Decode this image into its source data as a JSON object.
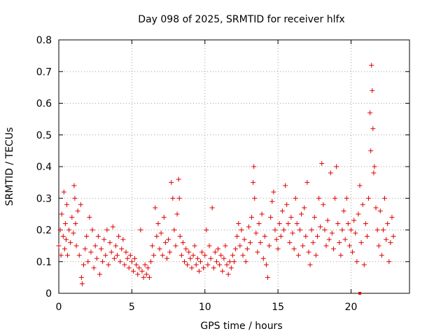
{
  "chart_data": {
    "type": "scatter",
    "title": "Day 098 of 2025, SRMTID for receiver hlfx",
    "xlabel": "GPS time / hours",
    "ylabel": "SRMTID / TECUs",
    "xlim": [
      0,
      24
    ],
    "ylim": [
      0,
      0.8
    ],
    "xticks": [
      0,
      5,
      10,
      15,
      20
    ],
    "xtick_labels": [
      "0",
      "5",
      "10",
      "15",
      "20"
    ],
    "yticks": [
      0,
      0.1,
      0.2,
      0.3,
      0.4,
      0.5,
      0.6,
      0.7,
      0.8
    ],
    "ytick_labels": [
      "0",
      "0.1",
      "0.2",
      "0.3",
      "0.4",
      "0.5",
      "0.6",
      "0.7",
      "0.8"
    ],
    "grid": true,
    "marker": "+",
    "marker_color": "#e00000",
    "series": [
      {
        "name": "SRMTID",
        "points": [
          [
            0.0,
            0.15
          ],
          [
            0.1,
            0.2
          ],
          [
            0.15,
            0.12
          ],
          [
            0.2,
            0.25
          ],
          [
            0.3,
            0.18
          ],
          [
            0.35,
            0.32
          ],
          [
            0.4,
            0.14
          ],
          [
            0.45,
            0.22
          ],
          [
            0.5,
            0.17
          ],
          [
            0.55,
            0.28
          ],
          [
            0.6,
            0.12
          ],
          [
            0.7,
            0.2
          ],
          [
            0.8,
            0.16
          ],
          [
            0.9,
            0.24
          ],
          [
            1.0,
            0.19
          ],
          [
            1.05,
            0.34
          ],
          [
            1.1,
            0.3
          ],
          [
            1.15,
            0.22
          ],
          [
            1.2,
            0.15
          ],
          [
            1.3,
            0.26
          ],
          [
            1.4,
            0.12
          ],
          [
            1.5,
            0.28
          ],
          [
            1.55,
            0.05
          ],
          [
            1.6,
            0.03
          ],
          [
            1.7,
            0.09
          ],
          [
            1.8,
            0.14
          ],
          [
            1.9,
            0.18
          ],
          [
            2.0,
            0.1
          ],
          [
            2.1,
            0.24
          ],
          [
            2.2,
            0.13
          ],
          [
            2.3,
            0.2
          ],
          [
            2.4,
            0.08
          ],
          [
            2.5,
            0.15
          ],
          [
            2.6,
            0.11
          ],
          [
            2.7,
            0.18
          ],
          [
            2.8,
            0.06
          ],
          [
            2.9,
            0.14
          ],
          [
            3.0,
            0.1
          ],
          [
            3.1,
            0.17
          ],
          [
            3.2,
            0.12
          ],
          [
            3.3,
            0.2
          ],
          [
            3.4,
            0.09
          ],
          [
            3.5,
            0.16
          ],
          [
            3.6,
            0.13
          ],
          [
            3.7,
            0.21
          ],
          [
            3.8,
            0.11
          ],
          [
            3.9,
            0.15
          ],
          [
            4.0,
            0.12
          ],
          [
            4.1,
            0.18
          ],
          [
            4.2,
            0.1
          ],
          [
            4.3,
            0.14
          ],
          [
            4.4,
            0.17
          ],
          [
            4.5,
            0.09
          ],
          [
            4.6,
            0.13
          ],
          [
            4.7,
            0.11
          ],
          [
            4.8,
            0.08
          ],
          [
            4.9,
            0.12
          ],
          [
            5.0,
            0.1
          ],
          [
            5.1,
            0.07
          ],
          [
            5.2,
            0.11
          ],
          [
            5.3,
            0.09
          ],
          [
            5.4,
            0.06
          ],
          [
            5.5,
            0.08
          ],
          [
            5.6,
            0.2
          ],
          [
            5.7,
            0.07
          ],
          [
            5.8,
            0.05
          ],
          [
            5.9,
            0.09
          ],
          [
            6.0,
            0.06
          ],
          [
            6.1,
            0.08
          ],
          [
            6.2,
            0.05
          ],
          [
            6.3,
            0.1
          ],
          [
            6.4,
            0.15
          ],
          [
            6.5,
            0.12
          ],
          [
            6.6,
            0.27
          ],
          [
            6.7,
            0.18
          ],
          [
            6.8,
            0.22
          ],
          [
            6.9,
            0.14
          ],
          [
            7.0,
            0.19
          ],
          [
            7.1,
            0.12
          ],
          [
            7.2,
            0.24
          ],
          [
            7.3,
            0.16
          ],
          [
            7.4,
            0.11
          ],
          [
            7.5,
            0.17
          ],
          [
            7.6,
            0.13
          ],
          [
            7.7,
            0.35
          ],
          [
            7.8,
            0.3
          ],
          [
            7.9,
            0.2
          ],
          [
            8.0,
            0.15
          ],
          [
            8.1,
            0.25
          ],
          [
            8.2,
            0.36
          ],
          [
            8.25,
            0.3
          ],
          [
            8.3,
            0.18
          ],
          [
            8.4,
            0.12
          ],
          [
            8.5,
            0.16
          ],
          [
            8.6,
            0.1
          ],
          [
            8.7,
            0.14
          ],
          [
            8.8,
            0.09
          ],
          [
            8.9,
            0.13
          ],
          [
            9.0,
            0.11
          ],
          [
            9.1,
            0.08
          ],
          [
            9.2,
            0.12
          ],
          [
            9.3,
            0.15
          ],
          [
            9.4,
            0.09
          ],
          [
            9.5,
            0.11
          ],
          [
            9.6,
            0.07
          ],
          [
            9.7,
            0.1
          ],
          [
            9.8,
            0.13
          ],
          [
            9.9,
            0.08
          ],
          [
            10.0,
            0.12
          ],
          [
            10.1,
            0.2
          ],
          [
            10.2,
            0.09
          ],
          [
            10.3,
            0.15
          ],
          [
            10.4,
            0.11
          ],
          [
            10.5,
            0.27
          ],
          [
            10.6,
            0.08
          ],
          [
            10.7,
            0.13
          ],
          [
            10.8,
            0.1
          ],
          [
            10.9,
            0.14
          ],
          [
            11.0,
            0.09
          ],
          [
            11.1,
            0.12
          ],
          [
            11.2,
            0.07
          ],
          [
            11.3,
            0.11
          ],
          [
            11.4,
            0.15
          ],
          [
            11.5,
            0.09
          ],
          [
            11.6,
            0.06
          ],
          [
            11.7,
            0.1
          ],
          [
            11.8,
            0.08
          ],
          [
            11.9,
            0.12
          ],
          [
            12.0,
            0.1
          ],
          [
            12.1,
            0.14
          ],
          [
            12.2,
            0.18
          ],
          [
            12.3,
            0.22
          ],
          [
            12.4,
            0.15
          ],
          [
            12.5,
            0.2
          ],
          [
            12.6,
            0.12
          ],
          [
            12.7,
            0.17
          ],
          [
            12.8,
            0.1
          ],
          [
            12.9,
            0.14
          ],
          [
            13.0,
            0.21
          ],
          [
            13.1,
            0.16
          ],
          [
            13.2,
            0.24
          ],
          [
            13.3,
            0.35
          ],
          [
            13.35,
            0.4
          ],
          [
            13.4,
            0.3
          ],
          [
            13.5,
            0.19
          ],
          [
            13.6,
            0.13
          ],
          [
            13.7,
            0.22
          ],
          [
            13.8,
            0.16
          ],
          [
            13.9,
            0.25
          ],
          [
            14.0,
            0.11
          ],
          [
            14.1,
            0.18
          ],
          [
            14.2,
            0.09
          ],
          [
            14.3,
            0.05
          ],
          [
            14.4,
            0.15
          ],
          [
            14.5,
            0.24
          ],
          [
            14.6,
            0.29
          ],
          [
            14.7,
            0.32
          ],
          [
            14.8,
            0.2
          ],
          [
            14.9,
            0.17
          ],
          [
            15.0,
            0.14
          ],
          [
            15.1,
            0.22
          ],
          [
            15.2,
            0.18
          ],
          [
            15.3,
            0.26
          ],
          [
            15.4,
            0.2
          ],
          [
            15.5,
            0.34
          ],
          [
            15.6,
            0.28
          ],
          [
            15.7,
            0.22
          ],
          [
            15.8,
            0.16
          ],
          [
            15.9,
            0.24
          ],
          [
            16.0,
            0.19
          ],
          [
            16.1,
            0.14
          ],
          [
            16.2,
            0.3
          ],
          [
            16.3,
            0.22
          ],
          [
            16.4,
            0.12
          ],
          [
            16.5,
            0.2
          ],
          [
            16.6,
            0.25
          ],
          [
            16.7,
            0.15
          ],
          [
            16.8,
            0.27
          ],
          [
            16.9,
            0.18
          ],
          [
            17.0,
            0.35
          ],
          [
            17.1,
            0.13
          ],
          [
            17.2,
            0.09
          ],
          [
            17.3,
            0.2
          ],
          [
            17.4,
            0.16
          ],
          [
            17.5,
            0.24
          ],
          [
            17.6,
            0.12
          ],
          [
            17.7,
            0.18
          ],
          [
            17.8,
            0.3
          ],
          [
            17.9,
            0.21
          ],
          [
            18.0,
            0.41
          ],
          [
            18.1,
            0.28
          ],
          [
            18.2,
            0.2
          ],
          [
            18.3,
            0.15
          ],
          [
            18.4,
            0.23
          ],
          [
            18.5,
            0.17
          ],
          [
            18.6,
            0.38
          ],
          [
            18.7,
            0.19
          ],
          [
            18.8,
            0.14
          ],
          [
            18.9,
            0.3
          ],
          [
            19.0,
            0.4
          ],
          [
            19.1,
            0.22
          ],
          [
            19.2,
            0.16
          ],
          [
            19.3,
            0.12
          ],
          [
            19.4,
            0.2
          ],
          [
            19.5,
            0.26
          ],
          [
            19.6,
            0.17
          ],
          [
            19.7,
            0.3
          ],
          [
            19.8,
            0.22
          ],
          [
            19.9,
            0.15
          ],
          [
            20.0,
            0.2
          ],
          [
            20.1,
            0.13
          ],
          [
            20.2,
            0.23
          ],
          [
            20.3,
            0.19
          ],
          [
            20.4,
            0.1
          ],
          [
            20.5,
            0.25
          ],
          [
            20.6,
            0.34
          ],
          [
            20.7,
            0.16
          ],
          [
            20.8,
            0.28
          ],
          [
            20.9,
            0.09
          ],
          [
            21.0,
            0.22
          ],
          [
            21.1,
            0.18
          ],
          [
            21.2,
            0.3
          ],
          [
            21.3,
            0.57
          ],
          [
            21.35,
            0.45
          ],
          [
            21.4,
            0.72
          ],
          [
            21.45,
            0.64
          ],
          [
            21.5,
            0.52
          ],
          [
            21.55,
            0.38
          ],
          [
            21.6,
            0.4
          ],
          [
            21.7,
            0.27
          ],
          [
            21.8,
            0.2
          ],
          [
            21.9,
            0.15
          ],
          [
            22.0,
            0.26
          ],
          [
            22.1,
            0.12
          ],
          [
            22.2,
            0.2
          ],
          [
            22.3,
            0.3
          ],
          [
            22.4,
            0.17
          ],
          [
            22.5,
            0.22
          ],
          [
            22.6,
            0.1
          ],
          [
            22.7,
            0.16
          ],
          [
            22.8,
            0.24
          ],
          [
            22.9,
            0.18
          ]
        ]
      }
    ],
    "outlier_markers": [
      {
        "x": 20.6,
        "y": 0.0,
        "shape": "square",
        "color": "#e00000"
      }
    ]
  }
}
